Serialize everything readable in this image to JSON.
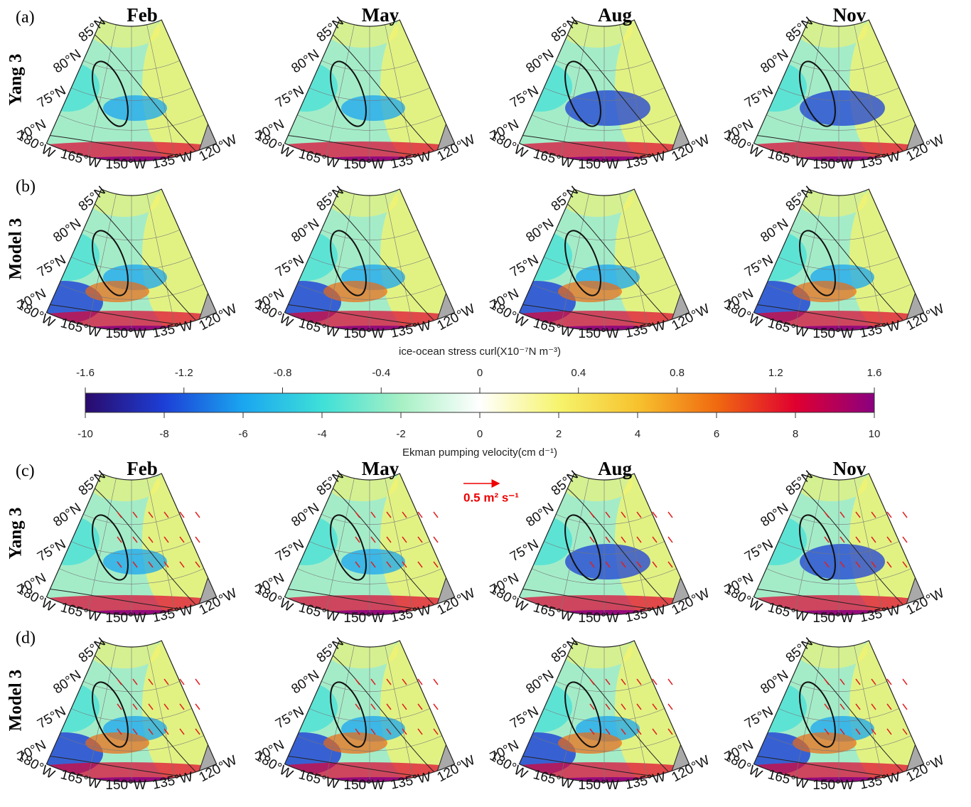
{
  "rows": [
    {
      "label": "(a)",
      "model": "Yang 3"
    },
    {
      "label": "(b)",
      "model": "Model 3"
    },
    {
      "label": "(c)",
      "model": "Yang 3"
    },
    {
      "label": "(d)",
      "model": "Model 3"
    }
  ],
  "months": [
    "Feb",
    "May",
    "Aug",
    "Nov"
  ],
  "lat_labels": [
    "85°N",
    "80°N",
    "75°N",
    "70°N"
  ],
  "lon_labels": [
    "180°W",
    "165°W",
    "150°W",
    "135°W",
    "120°W"
  ],
  "colorbar": {
    "top_label": "ice-ocean stress curl(X10⁻⁷N m⁻³)",
    "top_lim": [
      -1.6,
      1.6
    ],
    "top_ticks": [
      -1.6,
      -1.2,
      -0.8,
      -0.4,
      0,
      0.4,
      0.8,
      1.2,
      1.6
    ],
    "bottom_label": "Ekman pumping velocity(cm d⁻¹)",
    "bottom_lim": [
      -10,
      10
    ],
    "bottom_ticks": [
      -10,
      -8,
      -6,
      -4,
      -2,
      0,
      2,
      4,
      6,
      8,
      10
    ],
    "colors": [
      "#2a0a6b",
      "#1c3fd6",
      "#1aa6f0",
      "#3ee0d8",
      "#a6f0c4",
      "#ffffff",
      "#f6f46c",
      "#f7c22e",
      "#f06a10",
      "#e00030",
      "#8a0080"
    ]
  },
  "vector_scale": "0.5 m² s⁻¹"
}
